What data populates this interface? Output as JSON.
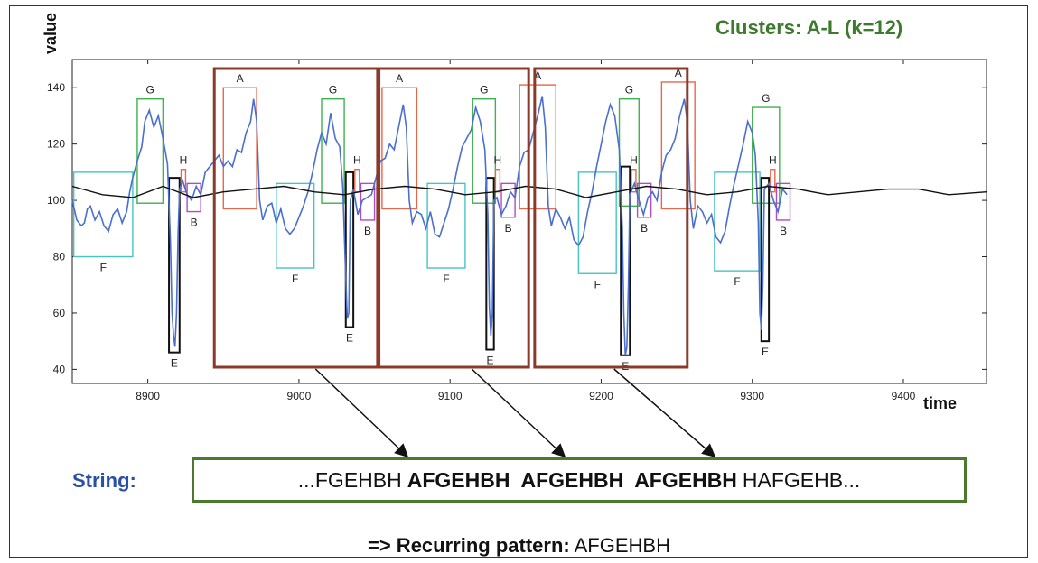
{
  "cluster_title": "Clusters: A-L (k=12)",
  "string_section": {
    "label": "String:",
    "parts": [
      "...FGEHBH",
      "AFGEHBH",
      "AFGEHBH",
      "AFGEHBH",
      "HAFGEHB..."
    ]
  },
  "recurring": {
    "prefix": "=> Recurring pattern:",
    "pattern": "AFGEHBH"
  },
  "colors": {
    "series": "#4a6fd0",
    "mean": "#111111",
    "highlight_box": "#8b3a2a",
    "string_box": "#4b7a2f",
    "cluster_title": "#3c7a2e",
    "string_label": "#2a4fa6",
    "cluster_A": "#e8674a",
    "cluster_F": "#47c4c4",
    "cluster_G": "#3fb24f",
    "cluster_E": "#111111",
    "cluster_H": "#e8674a",
    "cluster_B": "#b04cc4"
  },
  "chart_data": {
    "type": "line",
    "xlabel": "time",
    "ylabel": "value",
    "xlim": [
      8850,
      9455
    ],
    "ylim": [
      35,
      150
    ],
    "xticks": [
      8900,
      9000,
      9100,
      9200,
      9300,
      9400
    ],
    "yticks": [
      40,
      60,
      80,
      100,
      120,
      140
    ],
    "grid": false,
    "series": [
      {
        "values": [
          [
            8850,
            100
          ],
          [
            8853,
            93
          ],
          [
            8856,
            91
          ],
          [
            8858,
            92
          ],
          [
            8860,
            97
          ],
          [
            8862,
            98
          ],
          [
            8865,
            93
          ],
          [
            8868,
            96
          ],
          [
            8871,
            91
          ],
          [
            8874,
            89
          ],
          [
            8877,
            95
          ],
          [
            8880,
            97
          ],
          [
            8883,
            92
          ],
          [
            8886,
            96
          ],
          [
            8888,
            103
          ],
          [
            8890,
            108
          ],
          [
            8893,
            114
          ],
          [
            8896,
            119
          ],
          [
            8898,
            128
          ],
          [
            8901,
            132
          ],
          [
            8904,
            126
          ],
          [
            8907,
            130
          ],
          [
            8910,
            122
          ],
          [
            8913,
            113
          ],
          [
            8915,
            85
          ],
          [
            8916,
            60
          ],
          [
            8917,
            52
          ],
          [
            8918,
            48
          ],
          [
            8919,
            60
          ],
          [
            8920,
            88
          ],
          [
            8921,
            104
          ],
          [
            8923,
            107
          ],
          [
            8926,
            102
          ],
          [
            8929,
            100
          ],
          [
            8932,
            105
          ],
          [
            8935,
            102
          ],
          [
            8938,
            110
          ],
          [
            8941,
            112
          ],
          [
            8944,
            114
          ],
          [
            8947,
            116
          ],
          [
            8950,
            112
          ],
          [
            8953,
            114
          ],
          [
            8956,
            112
          ],
          [
            8959,
            118
          ],
          [
            8962,
            117
          ],
          [
            8965,
            124
          ],
          [
            8968,
            128
          ],
          [
            8970,
            136
          ],
          [
            8972,
            128
          ],
          [
            8974,
            100
          ],
          [
            8976,
            93
          ],
          [
            8979,
            98
          ],
          [
            8982,
            99
          ],
          [
            8985,
            92
          ],
          [
            8988,
            97
          ],
          [
            8991,
            90
          ],
          [
            8994,
            88
          ],
          [
            8997,
            90
          ],
          [
            9000,
            94
          ],
          [
            9003,
            98
          ],
          [
            9006,
            103
          ],
          [
            9009,
            110
          ],
          [
            9012,
            118
          ],
          [
            9015,
            124
          ],
          [
            9018,
            120
          ],
          [
            9021,
            131
          ],
          [
            9024,
            122
          ],
          [
            9027,
            119
          ],
          [
            9029,
            105
          ],
          [
            9031,
            72
          ],
          [
            9032,
            58
          ],
          [
            9033,
            60
          ],
          [
            9034,
            100
          ],
          [
            9036,
            104
          ],
          [
            9039,
            95
          ],
          [
            9042,
            100
          ],
          [
            9045,
            101
          ],
          [
            9048,
            102
          ],
          [
            9051,
            108
          ],
          [
            9054,
            114
          ],
          [
            9057,
            115
          ],
          [
            9060,
            120
          ],
          [
            9063,
            118
          ],
          [
            9066,
            126
          ],
          [
            9069,
            134
          ],
          [
            9071,
            126
          ],
          [
            9073,
            100
          ],
          [
            9075,
            92
          ],
          [
            9078,
            96
          ],
          [
            9081,
            95
          ],
          [
            9084,
            90
          ],
          [
            9087,
            96
          ],
          [
            9090,
            88
          ],
          [
            9093,
            87
          ],
          [
            9096,
            92
          ],
          [
            9099,
            97
          ],
          [
            9102,
            104
          ],
          [
            9105,
            112
          ],
          [
            9108,
            119
          ],
          [
            9111,
            122
          ],
          [
            9114,
            125
          ],
          [
            9117,
            133
          ],
          [
            9120,
            128
          ],
          [
            9123,
            118
          ],
          [
            9125,
            95
          ],
          [
            9126,
            62
          ],
          [
            9127,
            52
          ],
          [
            9128,
            60
          ],
          [
            9129,
            100
          ],
          [
            9131,
            101
          ],
          [
            9134,
            95
          ],
          [
            9137,
            98
          ],
          [
            9140,
            103
          ],
          [
            9143,
            101
          ],
          [
            9146,
            112
          ],
          [
            9149,
            117
          ],
          [
            9152,
            118
          ],
          [
            9155,
            124
          ],
          [
            9158,
            130
          ],
          [
            9161,
            137
          ],
          [
            9163,
            126
          ],
          [
            9165,
            98
          ],
          [
            9167,
            91
          ],
          [
            9170,
            97
          ],
          [
            9173,
            94
          ],
          [
            9176,
            90
          ],
          [
            9179,
            94
          ],
          [
            9182,
            86
          ],
          [
            9185,
            84
          ],
          [
            9188,
            87
          ],
          [
            9191,
            96
          ],
          [
            9194,
            103
          ],
          [
            9197,
            112
          ],
          [
            9200,
            120
          ],
          [
            9203,
            128
          ],
          [
            9206,
            134
          ],
          [
            9209,
            130
          ],
          [
            9212,
            118
          ],
          [
            9214,
            90
          ],
          [
            9215,
            60
          ],
          [
            9216,
            45
          ],
          [
            9217,
            48
          ],
          [
            9218,
            70
          ],
          [
            9219,
            102
          ],
          [
            9222,
            106
          ],
          [
            9225,
            100
          ],
          [
            9228,
            95
          ],
          [
            9231,
            101
          ],
          [
            9234,
            103
          ],
          [
            9237,
            100
          ],
          [
            9240,
            110
          ],
          [
            9243,
            116
          ],
          [
            9246,
            118
          ],
          [
            9249,
            122
          ],
          [
            9252,
            130
          ],
          [
            9255,
            136
          ],
          [
            9257,
            128
          ],
          [
            9259,
            100
          ],
          [
            9261,
            90
          ],
          [
            9264,
            98
          ],
          [
            9267,
            96
          ],
          [
            9270,
            92
          ],
          [
            9273,
            95
          ],
          [
            9276,
            87
          ],
          [
            9279,
            85
          ],
          [
            9282,
            89
          ],
          [
            9285,
            98
          ],
          [
            9288,
            106
          ],
          [
            9291,
            113
          ],
          [
            9294,
            120
          ],
          [
            9297,
            128
          ],
          [
            9300,
            124
          ],
          [
            9302,
            116
          ],
          [
            9304,
            92
          ],
          [
            9305,
            60
          ],
          [
            9306,
            54
          ],
          [
            9307,
            70
          ],
          [
            9308,
            104
          ],
          [
            9311,
            106
          ],
          [
            9314,
            100
          ],
          [
            9317,
            96
          ],
          [
            9320,
            104
          ],
          [
            9323,
            102
          ]
        ]
      },
      {
        "values": [
          [
            8850,
            105
          ],
          [
            8870,
            102
          ],
          [
            8890,
            101
          ],
          [
            8910,
            105
          ],
          [
            8930,
            101
          ],
          [
            8950,
            103
          ],
          [
            8970,
            104
          ],
          [
            8990,
            105
          ],
          [
            9010,
            103
          ],
          [
            9030,
            102
          ],
          [
            9050,
            104
          ],
          [
            9070,
            105
          ],
          [
            9090,
            104
          ],
          [
            9110,
            102
          ],
          [
            9130,
            103
          ],
          [
            9150,
            105
          ],
          [
            9170,
            104
          ],
          [
            9190,
            101
          ],
          [
            9210,
            103
          ],
          [
            9230,
            105
          ],
          [
            9250,
            104
          ],
          [
            9270,
            102
          ],
          [
            9290,
            103
          ],
          [
            9310,
            105
          ],
          [
            9330,
            104
          ],
          [
            9350,
            102
          ],
          [
            9370,
            103
          ],
          [
            9390,
            104
          ],
          [
            9410,
            104
          ],
          [
            9430,
            102
          ],
          [
            9455,
            103
          ]
        ]
      }
    ],
    "clusters": [
      {
        "label": "F",
        "x0": 8851,
        "x1": 8890,
        "y0": 80,
        "y1": 110,
        "color": "#47c4c4"
      },
      {
        "label": "G",
        "x0": 8893,
        "x1": 8910,
        "y0": 99,
        "y1": 136,
        "color": "#3fb24f"
      },
      {
        "label": "E",
        "x0": 8914,
        "x1": 8921,
        "y0": 46,
        "y1": 108,
        "color": "#111111"
      },
      {
        "label": "H",
        "x0": 8922,
        "x1": 8925,
        "y0": 103,
        "y1": 111,
        "color": "#e8674a"
      },
      {
        "label": "B",
        "x0": 8926,
        "x1": 8935,
        "y0": 96,
        "y1": 106,
        "color": "#b04cc4"
      },
      {
        "label": "A",
        "x0": 8950,
        "x1": 8972,
        "y0": 97,
        "y1": 140,
        "color": "#e8674a"
      },
      {
        "label": "F",
        "x0": 8985,
        "x1": 9010,
        "y0": 76,
        "y1": 106,
        "color": "#47c4c4"
      },
      {
        "label": "G",
        "x0": 9015,
        "x1": 9030,
        "y0": 99,
        "y1": 136,
        "color": "#3fb24f"
      },
      {
        "label": "E",
        "x0": 9031,
        "x1": 9036,
        "y0": 55,
        "y1": 110,
        "color": "#111111"
      },
      {
        "label": "H",
        "x0": 9037,
        "x1": 9040,
        "y0": 103,
        "y1": 111,
        "color": "#e8674a"
      },
      {
        "label": "B",
        "x0": 9041,
        "x1": 9050,
        "y0": 93,
        "y1": 106,
        "color": "#b04cc4"
      },
      {
        "label": "A",
        "x0": 9055,
        "x1": 9078,
        "y0": 97,
        "y1": 140,
        "color": "#e8674a"
      },
      {
        "label": "F",
        "x0": 9085,
        "x1": 9110,
        "y0": 76,
        "y1": 106,
        "color": "#47c4c4"
      },
      {
        "label": "G",
        "x0": 9115,
        "x1": 9130,
        "y0": 99,
        "y1": 136,
        "color": "#3fb24f"
      },
      {
        "label": "E",
        "x0": 9124,
        "x1": 9129,
        "y0": 47,
        "y1": 108,
        "color": "#111111"
      },
      {
        "label": "H",
        "x0": 9130,
        "x1": 9133,
        "y0": 103,
        "y1": 111,
        "color": "#e8674a"
      },
      {
        "label": "B",
        "x0": 9134,
        "x1": 9143,
        "y0": 94,
        "y1": 106,
        "color": "#b04cc4"
      },
      {
        "label": "A",
        "x0": 9146,
        "x1": 9170,
        "y0": 97,
        "y1": 141,
        "color": "#e8674a"
      },
      {
        "label": "F",
        "x0": 9185,
        "x1": 9210,
        "y0": 74,
        "y1": 110,
        "color": "#47c4c4"
      },
      {
        "label": "G",
        "x0": 9212,
        "x1": 9225,
        "y0": 98,
        "y1": 136,
        "color": "#3fb24f"
      },
      {
        "label": "E",
        "x0": 9213,
        "x1": 9219,
        "y0": 45,
        "y1": 112,
        "color": "#111111"
      },
      {
        "label": "H",
        "x0": 9220,
        "x1": 9223,
        "y0": 103,
        "y1": 111,
        "color": "#e8674a"
      },
      {
        "label": "B",
        "x0": 9224,
        "x1": 9233,
        "y0": 94,
        "y1": 106,
        "color": "#b04cc4"
      },
      {
        "label": "A",
        "x0": 9240,
        "x1": 9262,
        "y0": 97,
        "y1": 142,
        "color": "#e8674a"
      },
      {
        "label": "F",
        "x0": 9275,
        "x1": 9305,
        "y0": 75,
        "y1": 110,
        "color": "#47c4c4"
      },
      {
        "label": "G",
        "x0": 9300,
        "x1": 9318,
        "y0": 99,
        "y1": 133,
        "color": "#3fb24f"
      },
      {
        "label": "E",
        "x0": 9306,
        "x1": 9311,
        "y0": 50,
        "y1": 108,
        "color": "#111111"
      },
      {
        "label": "H",
        "x0": 9312,
        "x1": 9315,
        "y0": 103,
        "y1": 111,
        "color": "#e8674a"
      },
      {
        "label": "B",
        "x0": 9316,
        "x1": 9325,
        "y0": 93,
        "y1": 106,
        "color": "#b04cc4"
      }
    ],
    "highlight_windows": [
      {
        "x0": 8944,
        "x1": 9052
      },
      {
        "x0": 9053,
        "x1": 9152
      },
      {
        "x0": 9156,
        "x1": 9257
      }
    ]
  }
}
